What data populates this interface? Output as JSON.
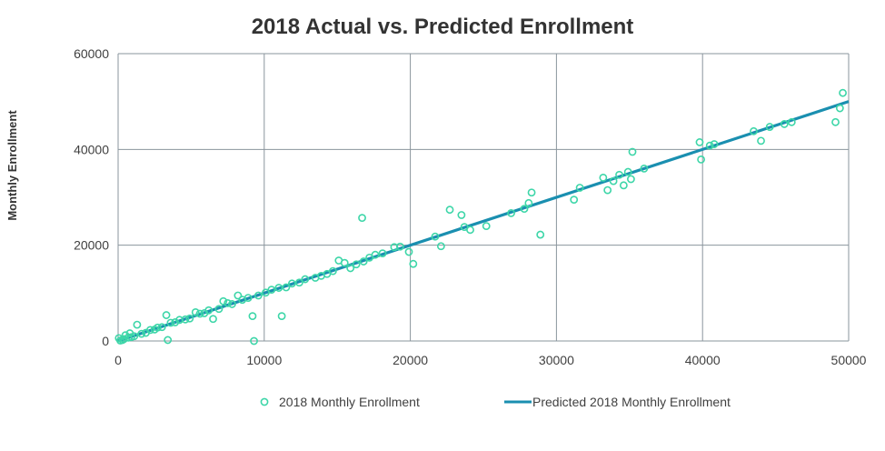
{
  "chart_data": {
    "type": "scatter",
    "title": "2018 Actual vs. Predicted Enrollment",
    "xlabel": "",
    "ylabel": "Monthly Enrollment",
    "xlim": [
      0,
      50000
    ],
    "ylim": [
      0,
      60000
    ],
    "x_ticks": [
      0,
      10000,
      20000,
      30000,
      40000,
      50000
    ],
    "y_ticks": [
      0,
      20000,
      40000,
      60000
    ],
    "grid": true,
    "legend": "bottom",
    "colors": {
      "scatter": "#3dd6a8",
      "line": "#1a8fb0",
      "grid": "#8a959d",
      "axis": "#8a959d"
    },
    "series": [
      {
        "name": "2018 Monthly Enrollment",
        "kind": "scatter",
        "points": [
          [
            16700,
            25700
          ],
          [
            22700,
            27400
          ],
          [
            23500,
            26300
          ],
          [
            28900,
            22200
          ],
          [
            28300,
            31000
          ],
          [
            27800,
            27600
          ],
          [
            26900,
            26700
          ],
          [
            28100,
            28800
          ],
          [
            25200,
            24000
          ],
          [
            24100,
            23200
          ],
          [
            23700,
            23800
          ],
          [
            22100,
            19800
          ],
          [
            21700,
            21800
          ],
          [
            20200,
            16100
          ],
          [
            19900,
            18600
          ],
          [
            19300,
            19700
          ],
          [
            18900,
            19600
          ],
          [
            18100,
            18300
          ],
          [
            17600,
            18000
          ],
          [
            17200,
            17400
          ],
          [
            16800,
            16600
          ],
          [
            16300,
            16000
          ],
          [
            15900,
            15200
          ],
          [
            15500,
            16300
          ],
          [
            15100,
            16800
          ],
          [
            14700,
            14600
          ],
          [
            14300,
            14000
          ],
          [
            13900,
            13600
          ],
          [
            13500,
            13200
          ],
          [
            12800,
            12900
          ],
          [
            12400,
            12200
          ],
          [
            11900,
            12000
          ],
          [
            11500,
            11200
          ],
          [
            11000,
            11100
          ],
          [
            11200,
            5200
          ],
          [
            10500,
            10700
          ],
          [
            10100,
            10100
          ],
          [
            9600,
            9500
          ],
          [
            9200,
            5200
          ],
          [
            9300,
            0
          ],
          [
            8900,
            9000
          ],
          [
            8500,
            8600
          ],
          [
            8200,
            9500
          ],
          [
            7800,
            7700
          ],
          [
            7500,
            7900
          ],
          [
            7200,
            8300
          ],
          [
            6900,
            6700
          ],
          [
            6500,
            4600
          ],
          [
            6200,
            6400
          ],
          [
            5900,
            5800
          ],
          [
            5600,
            5700
          ],
          [
            5300,
            6000
          ],
          [
            4900,
            4700
          ],
          [
            4600,
            4500
          ],
          [
            4200,
            4400
          ],
          [
            3900,
            3900
          ],
          [
            3600,
            3800
          ],
          [
            3400,
            200
          ],
          [
            3300,
            5400
          ],
          [
            3000,
            2900
          ],
          [
            2700,
            2800
          ],
          [
            2500,
            2400
          ],
          [
            2200,
            2300
          ],
          [
            1900,
            1700
          ],
          [
            1600,
            1500
          ],
          [
            1300,
            3400
          ],
          [
            1100,
            1000
          ],
          [
            900,
            800
          ],
          [
            700,
            700
          ],
          [
            500,
            1200
          ],
          [
            300,
            200
          ],
          [
            150,
            100
          ],
          [
            50,
            600
          ],
          [
            400,
            400
          ],
          [
            800,
            1600
          ],
          [
            31200,
            29500
          ],
          [
            31600,
            32000
          ],
          [
            33200,
            34100
          ],
          [
            33500,
            31500
          ],
          [
            33900,
            33400
          ],
          [
            34300,
            34700
          ],
          [
            34600,
            32500
          ],
          [
            34900,
            35300
          ],
          [
            35100,
            33800
          ],
          [
            35200,
            39500
          ],
          [
            36000,
            36000
          ],
          [
            39800,
            41500
          ],
          [
            39900,
            37900
          ],
          [
            40500,
            40800
          ],
          [
            40800,
            41100
          ],
          [
            43500,
            43800
          ],
          [
            44000,
            41800
          ],
          [
            44600,
            44700
          ],
          [
            45600,
            45300
          ],
          [
            46100,
            45700
          ],
          [
            49100,
            45700
          ],
          [
            49400,
            48600
          ],
          [
            49600,
            51800
          ]
        ]
      },
      {
        "name": "Predicted 2018 Monthly Enrollment",
        "kind": "line",
        "points": [
          [
            0,
            0
          ],
          [
            50000,
            50000
          ]
        ]
      }
    ]
  }
}
